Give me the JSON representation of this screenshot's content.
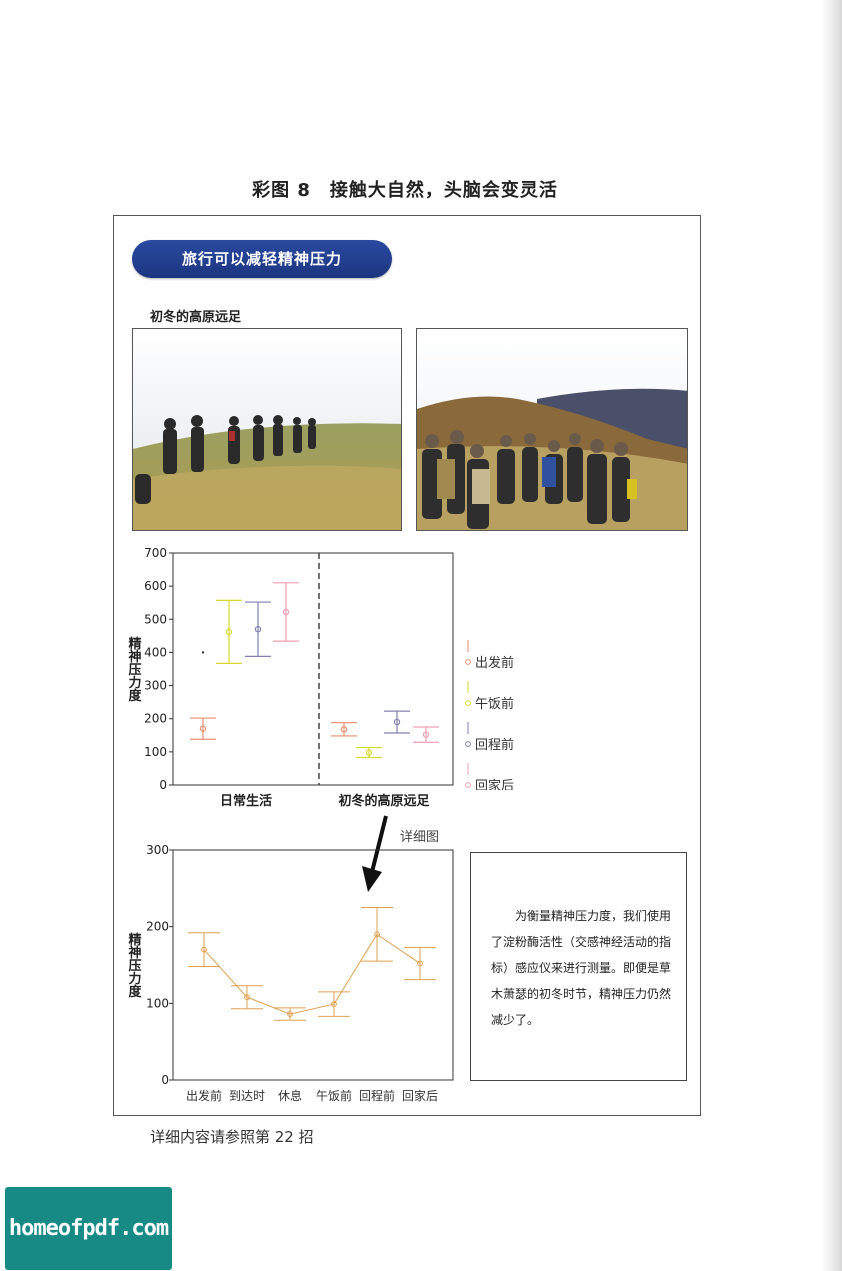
{
  "figure_title": "彩图 8　接触大自然，头脑会变灵活",
  "banner": "旅行可以减轻精神压力",
  "photo_caption": "初冬的高原远足",
  "detail_label": "详细图",
  "note_text": "为衡量精神压力度，我们使用了淀粉酶活性（交感神经活动的指标）感应仪来进行测量。即便是草木萧瑟的初冬时节，精神压力仍然减少了。",
  "footer": "详细内容请参照第 22 招",
  "logo": "homeofpdf.com",
  "colors": {
    "banner": "#2a4aa0",
    "s1": "#e89070",
    "s2": "#d8d830",
    "s3": "#8080b0",
    "s4": "#f0a0b0",
    "detail": "#e0a050"
  },
  "chart_data": [
    {
      "type": "scatter",
      "ylabel": "精神压力度",
      "ylim": [
        0,
        700
      ],
      "yticks": [
        "0",
        "100",
        "200",
        "300",
        "400",
        "500",
        "600",
        "700"
      ],
      "groups": [
        "日常生活",
        "初冬的高原远足"
      ],
      "legend": [
        "出发前",
        "午饭前",
        "回程前",
        "回家后"
      ],
      "series": [
        {
          "name": "出发前",
          "values": [
            170,
            168
          ],
          "errors": [
            32,
            20
          ]
        },
        {
          "name": "午饭前",
          "values": [
            462,
            98
          ],
          "errors": [
            95,
            15
          ]
        },
        {
          "name": "回程前",
          "values": [
            470,
            190
          ],
          "errors": [
            82,
            33
          ]
        },
        {
          "name": "回家后",
          "values": [
            522,
            152
          ],
          "errors": [
            88,
            23
          ]
        }
      ],
      "outlier": {
        "group": "日常生活",
        "value": 400
      }
    },
    {
      "type": "line",
      "ylabel": "精神压力度",
      "ylim": [
        0,
        300
      ],
      "yticks": [
        "0",
        "100",
        "200",
        "300"
      ],
      "categories": [
        "出发前",
        "到达时",
        "休息",
        "午饭前",
        "回程前",
        "回家后"
      ],
      "values": [
        170,
        108,
        86,
        99,
        190,
        152
      ],
      "errors": [
        22,
        15,
        8,
        16,
        35,
        21
      ]
    }
  ]
}
